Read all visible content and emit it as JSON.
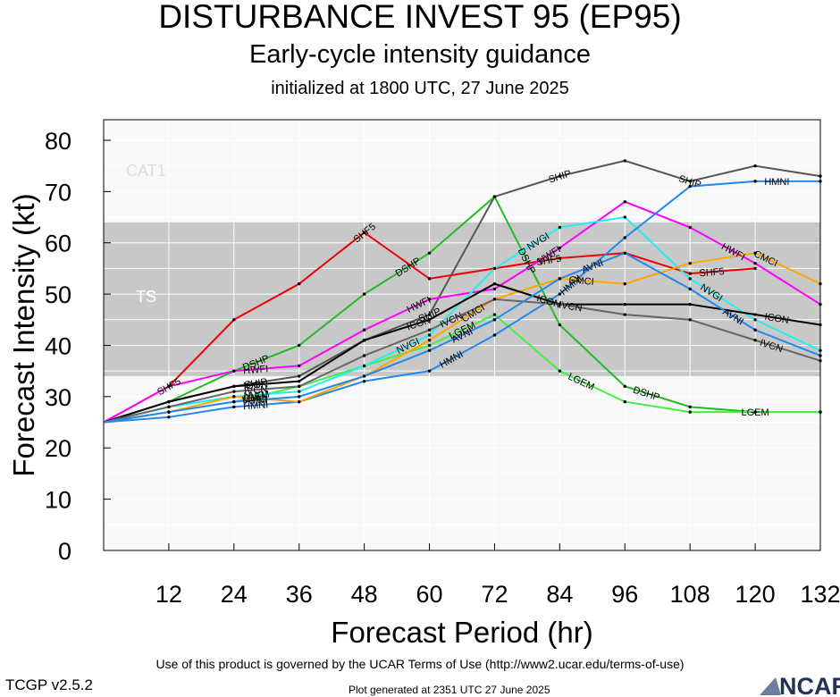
{
  "header": {
    "title": "DISTURBANCE INVEST 95 (EP95)",
    "subtitle": "Early-cycle intensity guidance",
    "init": "initialized at 1800 UTC, 27 June 2025"
  },
  "footer": {
    "terms": "Use of this product is governed by the UCAR Terms of Use (http://www2.ucar.edu/terms-of-use)",
    "version": "TCGP v2.5.2",
    "generated": "Plot generated at 2351 UTC   27 June 2025",
    "logo": "NCAR"
  },
  "colors": {
    "ts_band": "#c8c8c8",
    "plot_bg": "#f8f8f8",
    "grid": "#ffffff",
    "band_label": "#dddddd"
  },
  "chart_data": {
    "type": "line",
    "xlabel": "Forecast Period (hr)",
    "ylabel": "Forecast Intensity (kt)",
    "xlim": [
      0,
      132
    ],
    "ylim": [
      0,
      84
    ],
    "xticks": [
      12,
      24,
      36,
      48,
      60,
      72,
      84,
      96,
      108,
      120,
      132
    ],
    "yticks": [
      0,
      10,
      20,
      30,
      40,
      50,
      60,
      70,
      80
    ],
    "grid": true,
    "bands": [
      {
        "name": "TS",
        "from": 34,
        "to": 64,
        "color": "#c8c8c8"
      },
      {
        "name": "CAT1",
        "from": 64,
        "to": 84,
        "color": "#f8f8f8"
      }
    ],
    "series": [
      {
        "name": "SHIP",
        "color": "#555555",
        "x": [
          0,
          12,
          24,
          36,
          48,
          60,
          72,
          84,
          96,
          108,
          120,
          132
        ],
        "y": [
          25,
          29,
          32,
          34,
          41,
          46,
          69,
          73,
          76,
          72,
          75,
          73
        ],
        "label_x": [
          28,
          60,
          84,
          108
        ]
      },
      {
        "name": "DSHP",
        "color": "#22bb22",
        "x": [
          0,
          12,
          24,
          36,
          48,
          60,
          72,
          84,
          96,
          108,
          120,
          132
        ],
        "y": [
          25,
          29,
          35,
          40,
          50,
          58,
          69,
          44,
          32,
          28,
          27,
          27
        ],
        "label_x": [
          28,
          56,
          78,
          100
        ]
      },
      {
        "name": "LGEM",
        "color": "#44ee44",
        "x": [
          0,
          12,
          24,
          36,
          48,
          60,
          72,
          84,
          96,
          108,
          120,
          132
        ],
        "y": [
          25,
          27,
          29,
          32,
          36,
          40,
          46,
          35,
          29,
          27,
          27,
          27
        ],
        "label_x": [
          28,
          66,
          88,
          120
        ]
      },
      {
        "name": "SHF5",
        "color": "#ee0000",
        "x": [
          0,
          12,
          24,
          36,
          48,
          60,
          72,
          84,
          96,
          108,
          120
        ],
        "y": [
          25,
          32,
          45,
          52,
          62,
          53,
          55,
          57,
          58,
          54,
          55
        ],
        "label_x": [
          12,
          48,
          82,
          112
        ]
      },
      {
        "name": "HWFI",
        "color": "#ff00ff",
        "x": [
          0,
          12,
          24,
          36,
          48,
          60,
          72,
          84,
          96,
          108,
          120,
          132
        ],
        "y": [
          25,
          32,
          35,
          36,
          43,
          49,
          51,
          59,
          68,
          63,
          56,
          48
        ],
        "label_x": [
          28,
          58,
          82,
          116
        ]
      },
      {
        "name": "NVGI",
        "color": "#22eeee",
        "x": [
          0,
          12,
          24,
          36,
          48,
          60,
          72,
          84,
          96,
          108,
          120,
          132
        ],
        "y": [
          25,
          28,
          30,
          31,
          36,
          42,
          55,
          63,
          65,
          53,
          45,
          39
        ],
        "label_x": [
          28,
          56,
          80,
          112
        ]
      },
      {
        "name": "HMNI",
        "color": "#2288ee",
        "x": [
          0,
          12,
          24,
          36,
          48,
          60,
          72,
          84,
          96,
          108,
          120,
          132
        ],
        "y": [
          25,
          26,
          28,
          29,
          33,
          35,
          42,
          50,
          61,
          71,
          72,
          72
        ],
        "label_x": [
          28,
          64,
          86,
          124
        ]
      },
      {
        "name": "CMCI",
        "color": "#ffa500",
        "x": [
          0,
          12,
          24,
          36,
          48,
          60,
          72,
          84,
          96,
          108,
          120,
          132
        ],
        "y": [
          25,
          27,
          30,
          29,
          34,
          41,
          49,
          53,
          52,
          56,
          58,
          52
        ],
        "label_x": [
          28,
          68,
          88,
          122
        ]
      },
      {
        "name": "ICON",
        "color": "#000000",
        "x": [
          0,
          12,
          24,
          36,
          48,
          60,
          72,
          84,
          96,
          108,
          120,
          132
        ],
        "y": [
          25,
          29,
          32,
          33,
          41,
          45,
          52,
          48,
          48,
          48,
          46,
          44
        ],
        "label_x": [
          28,
          58,
          82,
          124
        ]
      },
      {
        "name": "IVCN",
        "color": "#666666",
        "x": [
          0,
          12,
          24,
          36,
          48,
          60,
          72,
          84,
          96,
          108,
          120,
          132
        ],
        "y": [
          25,
          28,
          31,
          32,
          38,
          43,
          49,
          48,
          46,
          45,
          41,
          37
        ],
        "label_x": [
          28,
          64,
          86,
          123
        ]
      },
      {
        "name": "AVNI",
        "color": "#2288ee",
        "x": [
          0,
          12,
          24,
          36,
          48,
          60,
          72,
          84,
          96,
          108,
          120,
          132
        ],
        "y": [
          25,
          27,
          29,
          30,
          34,
          39,
          45,
          53,
          58,
          51,
          43,
          38
        ],
        "label_x": [
          28,
          66,
          90,
          116
        ]
      }
    ]
  }
}
